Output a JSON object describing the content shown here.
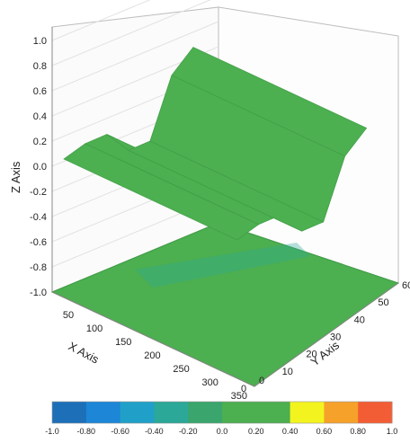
{
  "chart_data": {
    "type": "surface3d",
    "title": "",
    "xlabel": "X Axis",
    "ylabel": "Y Axis",
    "zlabel": "Z Axis",
    "xlim": [
      0,
      350
    ],
    "ylim": [
      0,
      60
    ],
    "zlim": [
      -1.0,
      1.0
    ],
    "x_ticks": [
      "50",
      "100",
      "150",
      "200",
      "250",
      "300",
      "350"
    ],
    "y_ticks": [
      "10",
      "20",
      "30",
      "40",
      "50",
      "60"
    ],
    "z_ticks": [
      "1.0",
      "0.8",
      "0.6",
      "0.4",
      "0.2",
      "0.0",
      "-0.2",
      "-0.4",
      "-0.6",
      "-0.8",
      "-1.0"
    ],
    "x_origin_label": "0",
    "y_origin_label": "0",
    "grid": true,
    "surface": {
      "description_y": [
        0,
        10,
        20,
        30,
        40,
        50,
        60
      ],
      "profile_z": [
        0.1,
        0.1,
        0.05,
        -0.2,
        -0.25,
        0.15,
        0.25
      ],
      "color": "#4caf50"
    },
    "projection_floor_z": -1.0,
    "colorbar": {
      "ticks": [
        "-1.0",
        "-0.80",
        "-0.60",
        "-0.40",
        "-0.20",
        "0.0",
        "0.20",
        "0.40",
        "0.60",
        "0.80",
        "1.0"
      ],
      "colors": [
        "#1d6fb8",
        "#1d86d6",
        "#20a0c8",
        "#2ba898",
        "#3aa56c",
        "#4caf50",
        "#4caf50",
        "#f3f320",
        "#f6a12a",
        "#f25d35",
        "#e83a4a"
      ]
    }
  }
}
